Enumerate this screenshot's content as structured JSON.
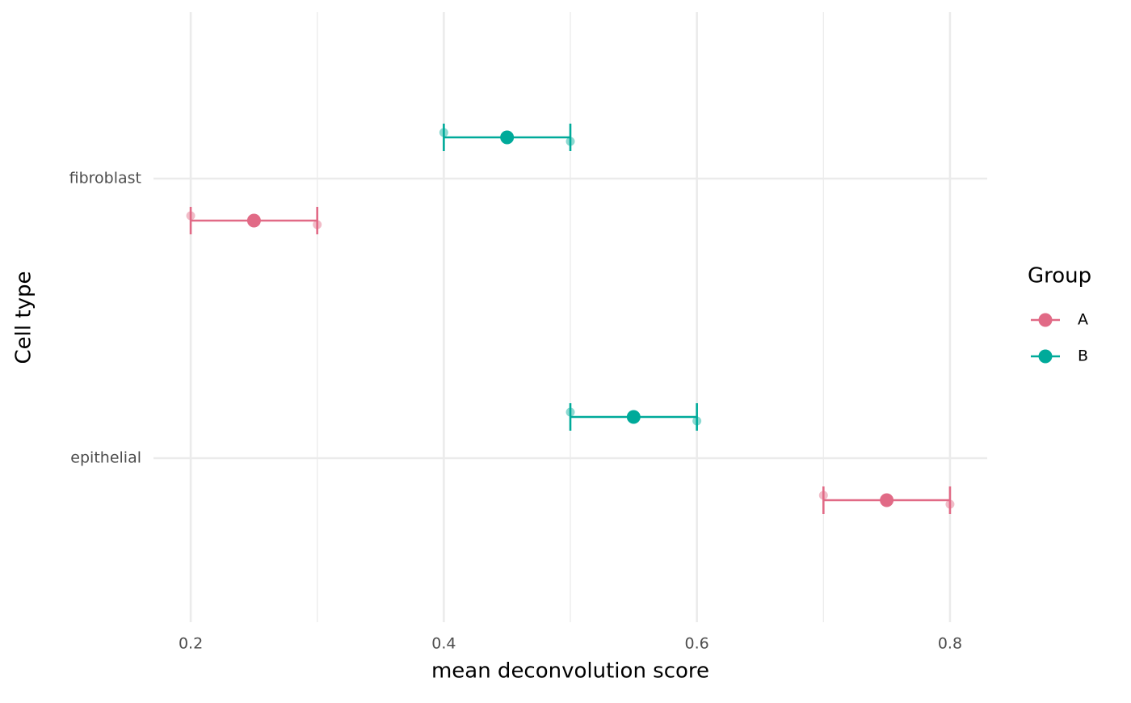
{
  "chart_data": {
    "type": "dot-errorbar",
    "orientation": "horizontal",
    "x_label": "mean deconvolution score",
    "y_label": "Cell type",
    "categories": [
      "fibroblast",
      "epithelial"
    ],
    "series": [
      {
        "name": "A",
        "color": "#e16a86",
        "values": [
          0.25,
          0.75
        ],
        "errors": [
          0.05,
          0.05
        ],
        "points": [
          [
            0.2,
            0.3
          ],
          [
            0.7,
            0.8
          ]
        ]
      },
      {
        "name": "B",
        "color": "#00aa9a",
        "values": [
          0.45,
          0.55
        ],
        "errors": [
          0.05,
          0.05
        ],
        "points": [
          [
            0.4,
            0.5
          ],
          [
            0.5,
            0.6
          ]
        ]
      }
    ],
    "xlim": [
      0.1706,
      0.8294
    ],
    "xticks": [
      0.2,
      0.4,
      0.6,
      0.8
    ],
    "x_minor_ticks": [
      0.3,
      0.5,
      0.7
    ],
    "grid": true,
    "legend": {
      "title": "Group",
      "position": "right"
    }
  }
}
